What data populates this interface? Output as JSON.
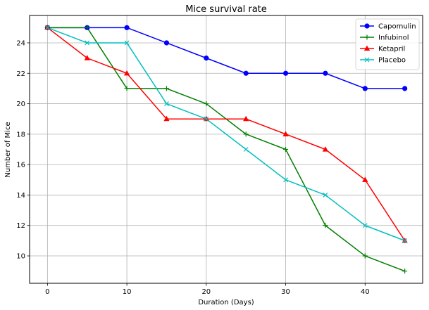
{
  "chart_data": {
    "type": "line",
    "title": "Mice survival rate",
    "xlabel": "Duration (Days)",
    "ylabel": "Number of Mice",
    "x": [
      0,
      5,
      10,
      15,
      20,
      25,
      30,
      35,
      40,
      45
    ],
    "xlim": [
      -2.25,
      47.25
    ],
    "ylim": [
      8.2,
      25.8
    ],
    "xticks": [
      0,
      10,
      20,
      30,
      40
    ],
    "yticks": [
      10,
      12,
      14,
      16,
      18,
      20,
      22,
      24
    ],
    "grid": true,
    "legend_position": "top-right",
    "series": [
      {
        "name": "Capomulin",
        "color": "#0000ff",
        "marker": "circle",
        "values": [
          25,
          25,
          25,
          24,
          23,
          22,
          22,
          22,
          21,
          21
        ]
      },
      {
        "name": "Infubinol",
        "color": "#008000",
        "marker": "plus",
        "values": [
          25,
          25,
          21,
          21,
          20,
          18,
          17,
          12,
          10,
          9
        ]
      },
      {
        "name": "Ketapril",
        "color": "#ff0000",
        "marker": "triangle",
        "values": [
          25,
          23,
          22,
          19,
          19,
          19,
          18,
          17,
          15,
          11
        ]
      },
      {
        "name": "Placebo",
        "color": "#00bfbf",
        "marker": "x",
        "values": [
          25,
          24,
          24,
          20,
          19,
          17,
          15,
          14,
          12,
          11
        ]
      }
    ]
  }
}
